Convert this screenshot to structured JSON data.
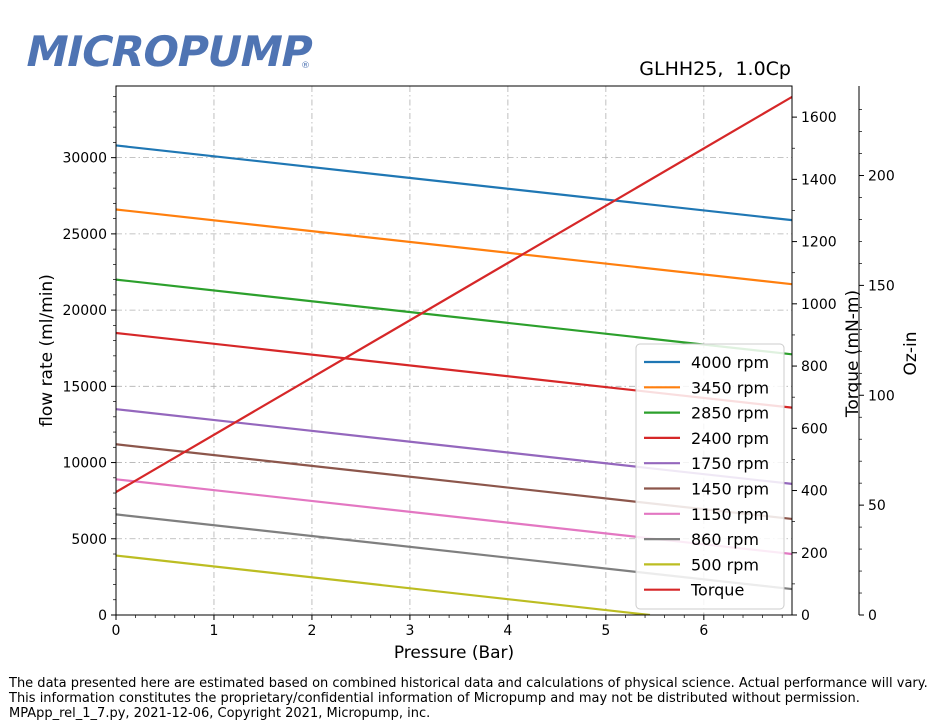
{
  "brand": {
    "name": "MICROPUMP",
    "reg": "®",
    "color": "#4f74b3"
  },
  "chart_data": {
    "type": "line",
    "title": "GLHH25,  1.0Cp",
    "xlabel": "Pressure (Bar)",
    "ylabel": "flow rate (ml/min)",
    "y2label": "Torque (mN-m)",
    "y3label": "Oz-in",
    "xlim": [
      0,
      6.9
    ],
    "ylim": [
      0,
      34700
    ],
    "y2lim": [
      0,
      1700
    ],
    "xticks": [
      "0",
      "1",
      "2",
      "3",
      "4",
      "5",
      "6"
    ],
    "yticks": [
      "0",
      "5000",
      "10000",
      "15000",
      "20000",
      "25000",
      "30000"
    ],
    "y2ticks": [
      "0",
      "200",
      "400",
      "600",
      "800",
      "1000",
      "1200",
      "1400",
      "1600"
    ],
    "y3ticks": [
      "0",
      "50",
      "100",
      "150",
      "200"
    ],
    "grid": true,
    "legend_position": "lower-right",
    "series": [
      {
        "name": "4000 rpm",
        "color": "#1f77b4",
        "x": [
          0,
          6.9
        ],
        "y": [
          30800,
          25900
        ]
      },
      {
        "name": "3450 rpm",
        "color": "#ff7f0e",
        "x": [
          0,
          6.9
        ],
        "y": [
          26600,
          21700
        ]
      },
      {
        "name": "2850 rpm",
        "color": "#2ca02c",
        "x": [
          0,
          6.9
        ],
        "y": [
          22000,
          17100
        ]
      },
      {
        "name": "2400 rpm",
        "color": "#d62728",
        "x": [
          0,
          6.9
        ],
        "y": [
          18500,
          13600
        ]
      },
      {
        "name": "1750 rpm",
        "color": "#9467bd",
        "x": [
          0,
          6.9
        ],
        "y": [
          13500,
          8600
        ]
      },
      {
        "name": "1450 rpm",
        "color": "#8c564b",
        "x": [
          0,
          6.9
        ],
        "y": [
          11200,
          6300
        ]
      },
      {
        "name": "1150 rpm",
        "color": "#e377c2",
        "x": [
          0,
          6.9
        ],
        "y": [
          8900,
          4000
        ]
      },
      {
        "name": "860 rpm",
        "color": "#7f7f7f",
        "x": [
          0,
          6.9
        ],
        "y": [
          6600,
          1700
        ]
      },
      {
        "name": "500 rpm",
        "color": "#bcbd22",
        "x": [
          0,
          5.45
        ],
        "y": [
          3900,
          0
        ]
      },
      {
        "name": "Torque",
        "color": "#d62728",
        "axis": "right",
        "x": [
          0,
          6.9
        ],
        "y": [
          395,
          1665
        ]
      }
    ]
  },
  "footer": {
    "line1": "The data presented here are estimated based on combined historical data and calculations of physical science.  Actual performance will vary.",
    "line2": "This information constitutes the proprietary/confidential information of Micropump and may not be distributed without permission.",
    "line3": "MPApp_rel_1_7.py, 2021-12-06, Copyright 2021, Micropump, inc."
  }
}
